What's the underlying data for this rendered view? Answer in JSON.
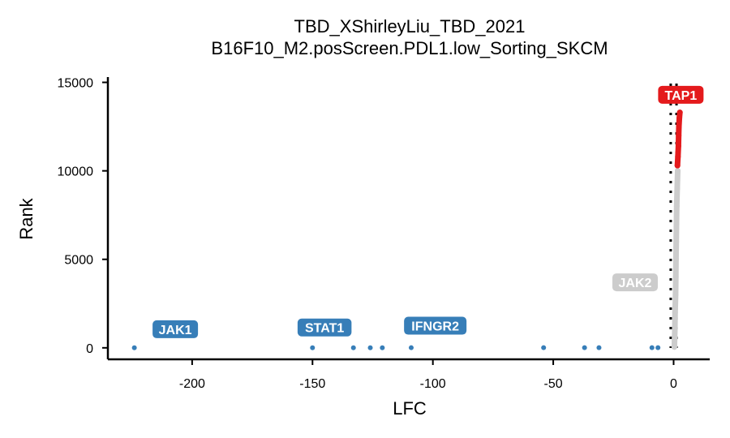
{
  "chart_data": {
    "type": "scatter",
    "title": "TBD_XShirleyLiu_TBD_2021",
    "subtitle": "B16F10_M2.posScreen.PDL1.low_Sorting_SKCM",
    "xlabel": "LFC",
    "ylabel": "Rank",
    "xlim": [
      -235,
      15
    ],
    "ylim": [
      -650,
      15300
    ],
    "xticks": [
      -200,
      -150,
      -100,
      -50,
      0
    ],
    "xtick_labels": [
      "-200",
      "-150",
      "-100",
      "-50",
      "0"
    ],
    "yticks": [
      0,
      5000,
      10000,
      15000
    ],
    "ytick_labels": [
      "0",
      "5000",
      "10000",
      "15000"
    ],
    "grid": false,
    "colors": {
      "negative": "#377eb8",
      "neutral": "#cccccc",
      "positive": "#e41a1c",
      "threshold_line": "#000000"
    },
    "threshold_lines_x": [
      -1.2,
      1.2
    ],
    "series": [
      {
        "group": "negative",
        "color": "#377eb8",
        "points": [
          {
            "x": -224,
            "y": 1
          },
          {
            "x": -150,
            "y": 2
          },
          {
            "x": -133,
            "y": 3
          },
          {
            "x": -126,
            "y": 4
          },
          {
            "x": -121,
            "y": 5
          },
          {
            "x": -109,
            "y": 6
          },
          {
            "x": -54,
            "y": 7
          },
          {
            "x": -37,
            "y": 8
          },
          {
            "x": -31,
            "y": 9
          },
          {
            "x": -9,
            "y": 10
          },
          {
            "x": -6.5,
            "y": 11
          }
        ]
      },
      {
        "group": "neutral",
        "color": "#cccccc",
        "points": [
          {
            "x": 0.3,
            "y": 50
          },
          {
            "x": 0.5,
            "y": 1000
          },
          {
            "x": 0.6,
            "y": 2000
          },
          {
            "x": 0.8,
            "y": 3000
          },
          {
            "x": 0.9,
            "y": 4000
          },
          {
            "x": 1.0,
            "y": 5000
          },
          {
            "x": 1.1,
            "y": 6000
          },
          {
            "x": 1.2,
            "y": 7000
          },
          {
            "x": 1.3,
            "y": 8000
          },
          {
            "x": 1.5,
            "y": 9000
          },
          {
            "x": 1.7,
            "y": 10000
          }
        ]
      },
      {
        "group": "positive",
        "color": "#e41a1c",
        "points": [
          {
            "x": 1.6,
            "y": 10300
          },
          {
            "x": 1.8,
            "y": 10800
          },
          {
            "x": 2.0,
            "y": 11400
          },
          {
            "x": 2.1,
            "y": 12000
          },
          {
            "x": 2.2,
            "y": 12500
          },
          {
            "x": 2.4,
            "y": 13000
          },
          {
            "x": 2.6,
            "y": 13300
          }
        ]
      }
    ],
    "labels": [
      {
        "text": "JAK1",
        "x": -207,
        "y": 1050,
        "group": "negative"
      },
      {
        "text": "STAT1",
        "x": -145,
        "y": 1150,
        "group": "negative"
      },
      {
        "text": "IFNGR2",
        "x": -99,
        "y": 1250,
        "group": "negative"
      },
      {
        "text": "JAK2",
        "x": -16,
        "y": 3700,
        "group": "neutral"
      },
      {
        "text": "TAP1",
        "x": 3,
        "y": 14300,
        "group": "positive"
      }
    ]
  }
}
